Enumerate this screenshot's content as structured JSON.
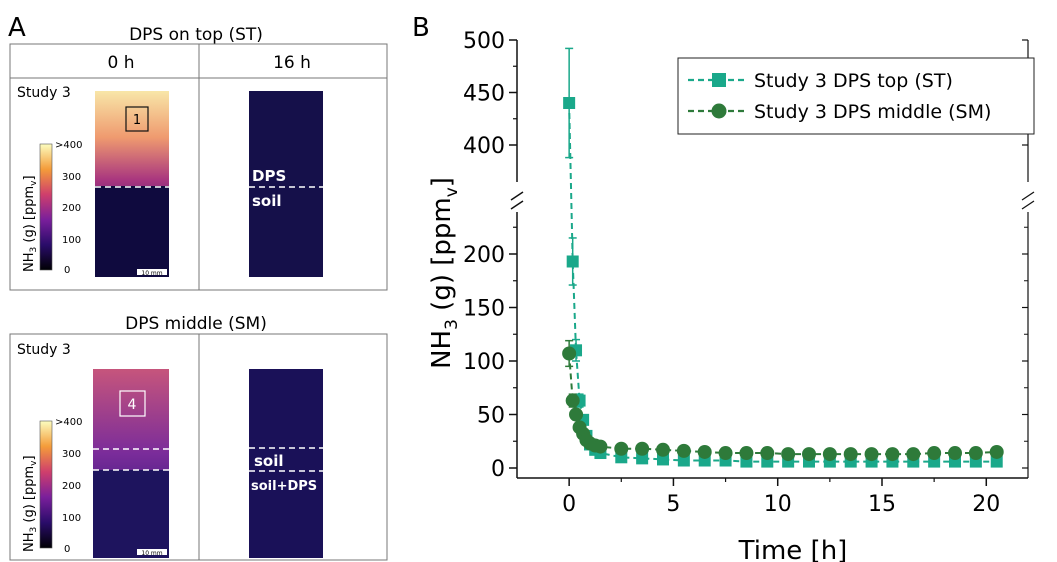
{
  "panel_a": {
    "label": "A",
    "top": {
      "title": "DPS on top (ST)",
      "col_0h": "0 h",
      "col_16h": "16 h",
      "study": "Study 3",
      "roi": "1",
      "label_upper": "DPS",
      "label_lower": "soil",
      "scale": "10 mm"
    },
    "bottom": {
      "title": "DPS middle (SM)",
      "study": "Study 3",
      "roi": "4",
      "label_upper": "soil",
      "label_lower": "soil+DPS",
      "scale": "10 mm"
    },
    "colorbar": {
      "ticks": [
        ">400",
        "300",
        "200",
        "100",
        "0"
      ],
      "label_main": "NH",
      "label_sub3": "3",
      "label_mid": " (g) [ppm",
      "label_subv": "v",
      "label_end": "]"
    },
    "colors": {
      "soil_dark": "#0d0a3a",
      "gas_hot": "#f6e29a",
      "gas_mid": "#c84f7e",
      "gas_low": "#5a1e9a"
    }
  },
  "chart_data": {
    "type": "line",
    "panel_label": "B",
    "x": [
      0,
      0.17,
      0.33,
      0.5,
      0.67,
      0.83,
      1.0,
      1.25,
      1.5,
      2.5,
      3.5,
      4.5,
      5.5,
      6.5,
      7.5,
      8.5,
      9.5,
      10.5,
      11.5,
      12.5,
      13.5,
      14.5,
      15.5,
      16.5,
      17.5,
      18.5,
      19.5,
      20.5
    ],
    "series": [
      {
        "name": "Study 3 DPS top (ST)",
        "color": "#1aa88a",
        "marker": "square",
        "values": [
          440,
          193,
          110,
          63,
          45,
          30,
          22,
          17,
          14,
          10,
          9,
          8,
          7,
          7,
          7,
          6,
          6,
          6,
          6,
          6,
          6,
          6,
          6,
          6,
          6,
          6,
          6,
          6
        ],
        "errors": [
          52,
          22,
          10,
          6,
          4,
          3,
          2,
          2,
          2,
          1,
          1,
          1,
          1,
          1,
          1,
          1,
          1,
          1,
          1,
          1,
          1,
          1,
          1,
          1,
          1,
          1,
          1,
          1
        ]
      },
      {
        "name": "Study 3 DPS middle (SM)",
        "color": "#2e7a3a",
        "marker": "circle",
        "values": [
          107,
          63,
          50,
          38,
          32,
          26,
          23,
          21,
          20,
          18,
          18,
          17,
          16,
          15,
          14,
          14,
          14,
          13,
          13,
          13,
          13,
          13,
          13,
          13,
          14,
          14,
          14,
          15
        ],
        "errors": [
          12,
          6,
          5,
          4,
          3,
          3,
          2,
          2,
          2,
          2,
          2,
          2,
          2,
          2,
          2,
          2,
          2,
          2,
          2,
          2,
          2,
          2,
          2,
          2,
          2,
          2,
          2,
          2
        ]
      }
    ],
    "xlabel": "Time [h]",
    "ylabel_main": "NH",
    "ylabel_sub3": "3",
    "ylabel_mid": " (g) [ppm",
    "ylabel_subv": "v",
    "ylabel_end": "]",
    "xlim": [
      -2.5,
      22
    ],
    "x_ticks": [
      0,
      5,
      10,
      15,
      20
    ],
    "y_segments": [
      {
        "range": [
          0,
          240
        ],
        "ticks": [
          0,
          50,
          100,
          150,
          200
        ]
      },
      {
        "range": [
          375,
          500
        ],
        "ticks": [
          400,
          450,
          500
        ]
      }
    ],
    "axis_break": true,
    "grid": false,
    "legend": "top-right"
  }
}
